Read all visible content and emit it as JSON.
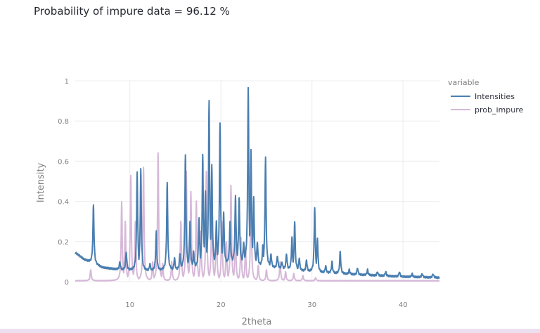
{
  "headline": "Probability of impure data = 96.12 %",
  "chart_data": {
    "type": "line",
    "title": "",
    "xlabel": "2theta",
    "ylabel": "Intensity",
    "xlim": [
      4,
      44
    ],
    "ylim": [
      0,
      1
    ],
    "xticks": [
      10,
      20,
      30,
      40
    ],
    "yticks": [
      0,
      0.2,
      0.4,
      0.6,
      0.8,
      1
    ],
    "grid": true,
    "legend": {
      "title": "variable",
      "placement": "right"
    },
    "series": [
      {
        "name": "Intensities",
        "color": "#4a7eb0",
        "baseline": [
          [
            4,
            0.145
          ],
          [
            5,
            0.11
          ],
          [
            6,
            0.09
          ],
          [
            7,
            0.07
          ],
          [
            8,
            0.065
          ],
          [
            9,
            0.06
          ],
          [
            12,
            0.055
          ],
          [
            15,
            0.06
          ],
          [
            18,
            0.08
          ],
          [
            22,
            0.1
          ],
          [
            26,
            0.07
          ],
          [
            30,
            0.05
          ],
          [
            35,
            0.035
          ],
          [
            40,
            0.025
          ],
          [
            44,
            0.02
          ]
        ],
        "peaks": [
          [
            6.0,
            0.38
          ],
          [
            8.9,
            0.1
          ],
          [
            9.6,
            0.15
          ],
          [
            10.8,
            0.55
          ],
          [
            11.2,
            0.56
          ],
          [
            12.2,
            0.09
          ],
          [
            12.9,
            0.25
          ],
          [
            14.1,
            0.49
          ],
          [
            14.9,
            0.12
          ],
          [
            15.5,
            0.14
          ],
          [
            16.1,
            0.63
          ],
          [
            16.6,
            0.3
          ],
          [
            17.0,
            0.15
          ],
          [
            17.6,
            0.32
          ],
          [
            18.0,
            0.63
          ],
          [
            18.3,
            0.45
          ],
          [
            18.7,
            0.9
          ],
          [
            19.0,
            0.58
          ],
          [
            19.5,
            0.3
          ],
          [
            19.9,
            0.79
          ],
          [
            20.3,
            0.35
          ],
          [
            21.0,
            0.3
          ],
          [
            21.6,
            0.43
          ],
          [
            22.0,
            0.42
          ],
          [
            22.5,
            0.2
          ],
          [
            23.0,
            0.97
          ],
          [
            23.3,
            0.66
          ],
          [
            23.6,
            0.42
          ],
          [
            24.0,
            0.2
          ],
          [
            24.6,
            0.18
          ],
          [
            24.9,
            0.62
          ],
          [
            25.5,
            0.14
          ],
          [
            26.2,
            0.13
          ],
          [
            26.7,
            0.1
          ],
          [
            27.2,
            0.14
          ],
          [
            27.8,
            0.22
          ],
          [
            28.1,
            0.3
          ],
          [
            28.6,
            0.12
          ],
          [
            29.4,
            0.11
          ],
          [
            30.3,
            0.37
          ],
          [
            30.6,
            0.22
          ],
          [
            31.5,
            0.08
          ],
          [
            32.2,
            0.1
          ],
          [
            33.1,
            0.15
          ],
          [
            34.1,
            0.06
          ],
          [
            35.0,
            0.07
          ],
          [
            36.1,
            0.06
          ],
          [
            37.2,
            0.05
          ],
          [
            38.1,
            0.05
          ],
          [
            39.6,
            0.05
          ],
          [
            41.0,
            0.04
          ],
          [
            42.1,
            0.04
          ],
          [
            43.3,
            0.04
          ]
        ]
      },
      {
        "name": "prob_impure",
        "color": "#d6b8d8",
        "baseline": [
          [
            4,
            0.005
          ],
          [
            44,
            0.005
          ]
        ],
        "peaks": [
          [
            5.7,
            0.06
          ],
          [
            9.1,
            0.4
          ],
          [
            9.5,
            0.3
          ],
          [
            10.1,
            0.53
          ],
          [
            10.6,
            0.3
          ],
          [
            11.5,
            0.57
          ],
          [
            12.5,
            0.1
          ],
          [
            13.1,
            0.64
          ],
          [
            13.6,
            0.09
          ],
          [
            14.6,
            0.1
          ],
          [
            15.6,
            0.3
          ],
          [
            16.2,
            0.55
          ],
          [
            16.7,
            0.45
          ],
          [
            17.3,
            0.4
          ],
          [
            17.8,
            0.25
          ],
          [
            18.4,
            0.55
          ],
          [
            19.0,
            0.45
          ],
          [
            19.5,
            0.3
          ],
          [
            20.1,
            0.3
          ],
          [
            20.6,
            0.2
          ],
          [
            21.1,
            0.48
          ],
          [
            21.6,
            0.25
          ],
          [
            22.2,
            0.22
          ],
          [
            22.7,
            0.17
          ],
          [
            23.3,
            0.45
          ],
          [
            24.1,
            0.08
          ],
          [
            25.0,
            0.06
          ],
          [
            26.5,
            0.1
          ],
          [
            27.1,
            0.05
          ],
          [
            28.0,
            0.04
          ],
          [
            29.0,
            0.03
          ],
          [
            30.4,
            0.02
          ]
        ]
      }
    ]
  }
}
